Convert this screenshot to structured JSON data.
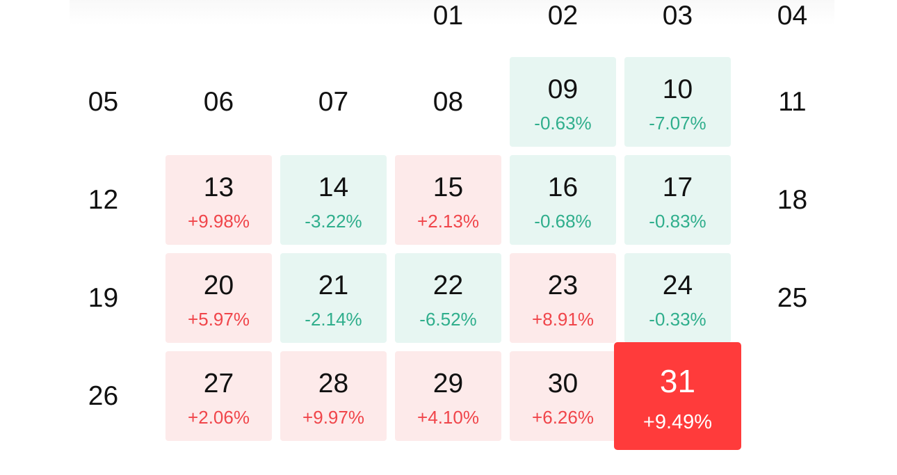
{
  "calendar": {
    "cells": [
      {
        "day": "01",
        "change": "",
        "trend": "plain",
        "col": 3,
        "row": 0
      },
      {
        "day": "02",
        "change": "",
        "trend": "plain",
        "col": 4,
        "row": 0
      },
      {
        "day": "03",
        "change": "",
        "trend": "plain",
        "col": 5,
        "row": 0
      },
      {
        "day": "04",
        "change": "",
        "trend": "plain",
        "col": 6,
        "row": 0
      },
      {
        "day": "05",
        "change": "",
        "trend": "plain",
        "col": 0,
        "row": 1
      },
      {
        "day": "06",
        "change": "",
        "trend": "plain",
        "col": 1,
        "row": 1
      },
      {
        "day": "07",
        "change": "",
        "trend": "plain",
        "col": 2,
        "row": 1
      },
      {
        "day": "08",
        "change": "",
        "trend": "plain",
        "col": 3,
        "row": 1
      },
      {
        "day": "09",
        "change": "-0.63%",
        "trend": "down",
        "col": 4,
        "row": 1
      },
      {
        "day": "10",
        "change": "-7.07%",
        "trend": "down",
        "col": 5,
        "row": 1
      },
      {
        "day": "11",
        "change": "",
        "trend": "plain",
        "col": 6,
        "row": 1
      },
      {
        "day": "12",
        "change": "",
        "trend": "plain",
        "col": 0,
        "row": 2
      },
      {
        "day": "13",
        "change": "+9.98%",
        "trend": "up",
        "col": 1,
        "row": 2
      },
      {
        "day": "14",
        "change": "-3.22%",
        "trend": "down",
        "col": 2,
        "row": 2
      },
      {
        "day": "15",
        "change": "+2.13%",
        "trend": "up",
        "col": 3,
        "row": 2
      },
      {
        "day": "16",
        "change": "-0.68%",
        "trend": "down",
        "col": 4,
        "row": 2
      },
      {
        "day": "17",
        "change": "-0.83%",
        "trend": "down",
        "col": 5,
        "row": 2
      },
      {
        "day": "18",
        "change": "",
        "trend": "plain",
        "col": 6,
        "row": 2
      },
      {
        "day": "19",
        "change": "",
        "trend": "plain",
        "col": 0,
        "row": 3
      },
      {
        "day": "20",
        "change": "+5.97%",
        "trend": "up",
        "col": 1,
        "row": 3
      },
      {
        "day": "21",
        "change": "-2.14%",
        "trend": "down",
        "col": 2,
        "row": 3
      },
      {
        "day": "22",
        "change": "-6.52%",
        "trend": "down",
        "col": 3,
        "row": 3
      },
      {
        "day": "23",
        "change": "+8.91%",
        "trend": "up",
        "col": 4,
        "row": 3
      },
      {
        "day": "24",
        "change": "-0.33%",
        "trend": "down",
        "col": 5,
        "row": 3
      },
      {
        "day": "25",
        "change": "",
        "trend": "plain",
        "col": 6,
        "row": 3
      },
      {
        "day": "26",
        "change": "",
        "trend": "plain",
        "col": 0,
        "row": 4
      },
      {
        "day": "27",
        "change": "+2.06%",
        "trend": "up",
        "col": 1,
        "row": 4
      },
      {
        "day": "28",
        "change": "+9.97%",
        "trend": "up",
        "col": 2,
        "row": 4
      },
      {
        "day": "29",
        "change": "+4.10%",
        "trend": "up",
        "col": 3,
        "row": 4
      },
      {
        "day": "30",
        "change": "+6.26%",
        "trend": "up",
        "col": 4,
        "row": 4
      },
      {
        "day": "31",
        "change": "+9.49%",
        "trend": "selected",
        "col": 5,
        "row": 4
      }
    ]
  },
  "colors": {
    "up_bg": "#fdeaea",
    "up_text": "#f0454a",
    "down_bg": "#e7f6f2",
    "down_text": "#2fae8c",
    "selected_bg": "#ff3b3b"
  }
}
